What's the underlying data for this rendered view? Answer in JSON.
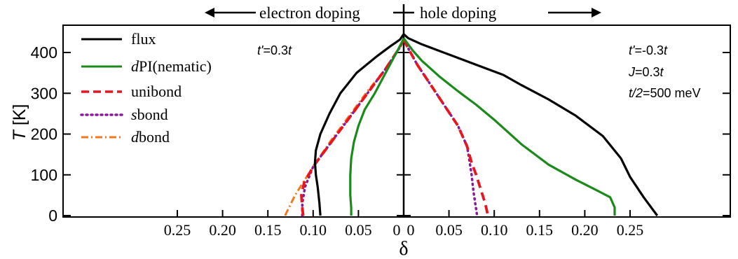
{
  "header": {
    "left_label": "electron doping",
    "right_label": "hole doping"
  },
  "annotations": {
    "left": {
      "t": "t'",
      "eq": "=0.3",
      "t2": "t"
    },
    "right_1": {
      "t": "t'",
      "eq": "=-0.3",
      "t2": "t"
    },
    "right_2": {
      "t": "J",
      "eq": "=0.3",
      "t2": "t"
    },
    "right_3": {
      "t": "t/2",
      "eq": "=500 meV",
      "t2": ""
    }
  },
  "axes": {
    "ylabel_italic": "T",
    "ylabel_unit": " [K]",
    "xlabel": "δ",
    "y_ticks": [
      "0",
      "100",
      "200",
      "300",
      "400"
    ],
    "x_ticks_left": [
      "0.25",
      "0.20",
      "0.15",
      "0.10",
      "0.05",
      "0"
    ],
    "x_ticks_right": [
      "0",
      "0.05",
      "0.10",
      "0.15",
      "0.20",
      "0.25"
    ]
  },
  "legend": [
    {
      "key": "flux",
      "prefix": "",
      "suffix": "flux",
      "color": "#000000",
      "dash": "solid"
    },
    {
      "key": "dpi",
      "prefix": "d",
      "suffix": "PI(nematic)",
      "color": "#1a8a1a",
      "dash": "solid"
    },
    {
      "key": "unibond",
      "prefix": "",
      "suffix": "unibond",
      "color": "#e8141e",
      "dash": "dashed"
    },
    {
      "key": "sbond",
      "prefix": "s",
      "suffix": "bond",
      "color": "#8a1a9a",
      "dash": "dotted"
    },
    {
      "key": "dbond",
      "prefix": "d",
      "suffix": "bond",
      "color": "#f07820",
      "dash": "dashdot"
    }
  ],
  "chart_data": {
    "type": "line",
    "title": "",
    "xlabel": "δ",
    "ylabel": "T [K]",
    "ylim": [
      0,
      460
    ],
    "xlim_electron": [
      0.3,
      0
    ],
    "xlim_hole": [
      0,
      0.3
    ],
    "grid": false,
    "legend_position": "top-left",
    "series": [
      {
        "name": "flux",
        "electron": [
          [
            0.092,
            0
          ],
          [
            0.093,
            30
          ],
          [
            0.095,
            70
          ],
          [
            0.097,
            100
          ],
          [
            0.098,
            130
          ],
          [
            0.097,
            160
          ],
          [
            0.092,
            200
          ],
          [
            0.082,
            250
          ],
          [
            0.07,
            300
          ],
          [
            0.052,
            350
          ],
          [
            0.03,
            390
          ],
          [
            0.015,
            415
          ],
          [
            0.004,
            432
          ],
          [
            0,
            445
          ]
        ],
        "hole": [
          [
            0,
            445
          ],
          [
            0.005,
            435
          ],
          [
            0.02,
            420
          ],
          [
            0.05,
            395
          ],
          [
            0.08,
            370
          ],
          [
            0.11,
            345
          ],
          [
            0.13,
            320
          ],
          [
            0.16,
            285
          ],
          [
            0.19,
            245
          ],
          [
            0.22,
            195
          ],
          [
            0.24,
            140
          ],
          [
            0.25,
            95
          ],
          [
            0.265,
            45
          ],
          [
            0.28,
            0
          ]
        ]
      },
      {
        "name": "dPI(nematic)",
        "electron": [
          [
            0.058,
            0
          ],
          [
            0.058,
            20
          ],
          [
            0.059,
            50
          ],
          [
            0.059,
            100
          ],
          [
            0.058,
            140
          ],
          [
            0.055,
            180
          ],
          [
            0.05,
            220
          ],
          [
            0.043,
            260
          ],
          [
            0.032,
            300
          ],
          [
            0.02,
            350
          ],
          [
            0.008,
            400
          ],
          [
            0.002,
            425
          ],
          [
            0,
            435
          ]
        ],
        "hole": [
          [
            0,
            435
          ],
          [
            0.01,
            405
          ],
          [
            0.02,
            380
          ],
          [
            0.04,
            340
          ],
          [
            0.06,
            305
          ],
          [
            0.08,
            272
          ],
          [
            0.1,
            235
          ],
          [
            0.13,
            175
          ],
          [
            0.16,
            125
          ],
          [
            0.19,
            88
          ],
          [
            0.215,
            60
          ],
          [
            0.228,
            45
          ],
          [
            0.233,
            20
          ],
          [
            0.233,
            0
          ]
        ]
      },
      {
        "name": "unibond",
        "electron": [
          [
            0.111,
            0
          ],
          [
            0.112,
            20
          ],
          [
            0.113,
            50
          ],
          [
            0.11,
            80
          ],
          [
            0.1,
            120
          ],
          [
            0.08,
            180
          ],
          [
            0.06,
            240
          ],
          [
            0.04,
            300
          ],
          [
            0.02,
            360
          ],
          [
            0.005,
            410
          ],
          [
            0,
            432
          ]
        ],
        "hole": [
          [
            0,
            432
          ],
          [
            0.005,
            410
          ],
          [
            0.015,
            370
          ],
          [
            0.03,
            320
          ],
          [
            0.045,
            270
          ],
          [
            0.06,
            220
          ],
          [
            0.07,
            170
          ],
          [
            0.075,
            130
          ],
          [
            0.08,
            100
          ],
          [
            0.085,
            65
          ],
          [
            0.09,
            30
          ],
          [
            0.093,
            0
          ]
        ]
      },
      {
        "name": "sbond",
        "electron": [
          [
            0.112,
            0
          ],
          [
            0.112,
            30
          ],
          [
            0.109,
            70
          ],
          [
            0.1,
            120
          ],
          [
            0.08,
            180
          ],
          [
            0.06,
            240
          ],
          [
            0.04,
            300
          ],
          [
            0.02,
            360
          ],
          [
            0.005,
            410
          ],
          [
            0,
            430
          ]
        ],
        "hole": [
          [
            0,
            430
          ],
          [
            0.005,
            410
          ],
          [
            0.015,
            370
          ],
          [
            0.03,
            320
          ],
          [
            0.045,
            270
          ],
          [
            0.06,
            220
          ],
          [
            0.07,
            170
          ],
          [
            0.073,
            130
          ],
          [
            0.075,
            100
          ],
          [
            0.077,
            60
          ],
          [
            0.079,
            30
          ],
          [
            0.081,
            0
          ]
        ]
      },
      {
        "name": "dbond",
        "electron": [
          [
            0.131,
            0
          ],
          [
            0.12,
            50
          ],
          [
            0.1,
            120
          ],
          [
            0.08,
            185
          ],
          [
            0.06,
            245
          ],
          [
            0.04,
            305
          ],
          [
            0.02,
            360
          ],
          [
            0.005,
            410
          ],
          [
            0,
            430
          ]
        ],
        "hole": []
      }
    ]
  }
}
